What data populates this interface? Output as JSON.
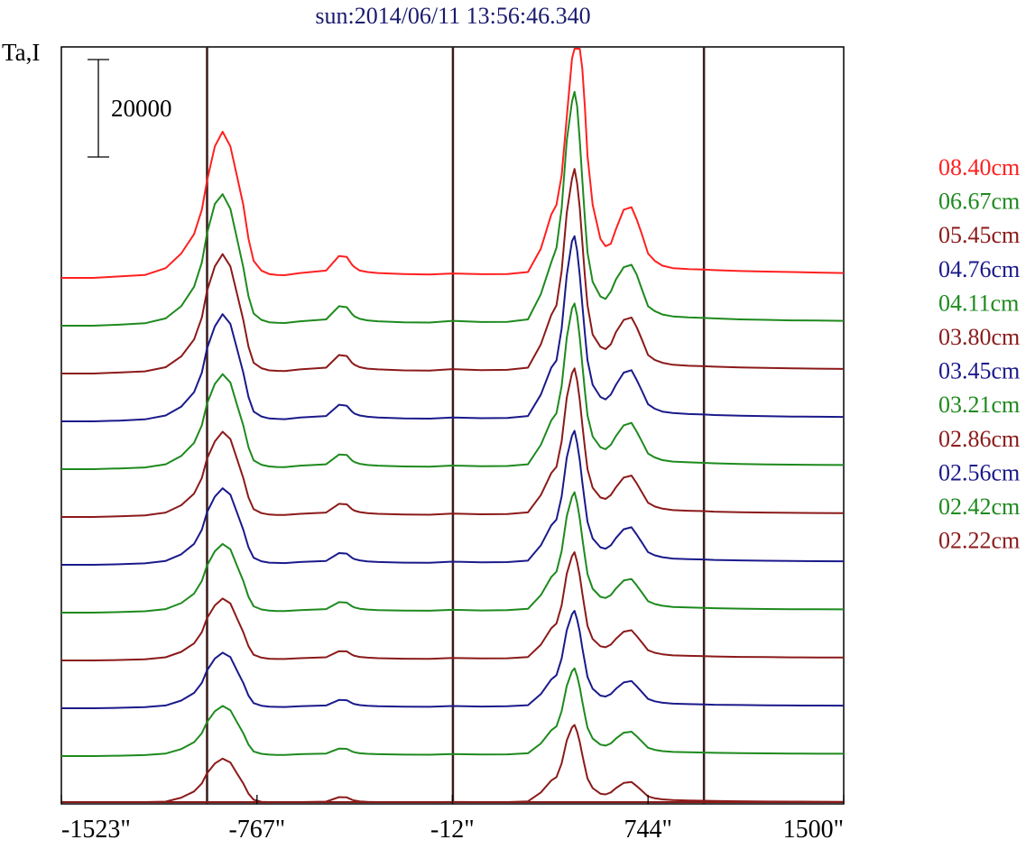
{
  "chart_data": {
    "type": "line",
    "title": "sun:2014/06/11 13:56:46.340",
    "ylabel": "Ta,I",
    "xlabel": "",
    "scale_bar": {
      "label": "20000",
      "value": 20000
    },
    "x_ticks": [
      {
        "value": -1523,
        "label": "-1523\""
      },
      {
        "value": -767,
        "label": "-767\""
      },
      {
        "value": -12,
        "label": "-12\""
      },
      {
        "value": 744,
        "label": "744\""
      },
      {
        "value": 1500,
        "label": "1500\""
      }
    ],
    "xlim": [
      -1523,
      1500
    ],
    "vertical_lines": [
      -960,
      -10,
      960
    ],
    "x": [
      -1523,
      -1400,
      -1300,
      -1200,
      -1120,
      -1060,
      -1010,
      -980,
      -960,
      -930,
      -900,
      -870,
      -845,
      -820,
      -800,
      -780,
      -750,
      -720,
      -690,
      -660,
      -600,
      -500,
      -450,
      -420,
      -400,
      -390,
      -370,
      -340,
      -300,
      -200,
      -100,
      -12,
      100,
      200,
      280,
      330,
      370,
      390,
      410,
      430,
      450,
      460,
      470,
      480,
      490,
      500,
      510,
      530,
      560,
      580,
      600,
      620,
      650,
      680,
      700,
      720,
      744,
      770,
      800,
      840,
      900,
      960,
      1000,
      1100,
      1200,
      1300,
      1400,
      1500
    ],
    "series": [
      {
        "name": "08.40cm",
        "color": "#ff2020",
        "values": [
          0,
          0,
          300,
          600,
          2000,
          5000,
          9000,
          14000,
          20000,
          27000,
          30000,
          27000,
          21000,
          15000,
          8000,
          3500,
          1500,
          800,
          600,
          550,
          1000,
          1500,
          4500,
          4300,
          2700,
          2200,
          1500,
          1200,
          1000,
          800,
          700,
          900,
          750,
          800,
          1200,
          6000,
          13000,
          15000,
          21000,
          33000,
          45000,
          50000,
          51000,
          49000,
          43000,
          35000,
          25000,
          15000,
          8000,
          6500,
          7000,
          10000,
          14000,
          14500,
          12000,
          9000,
          5000,
          3500,
          2500,
          2000,
          1800,
          1700,
          1600,
          1400,
          1300,
          1200,
          1100,
          1000
        ]
      },
      {
        "name": "06.67cm",
        "color": "#1e8a1e",
        "values": [
          0,
          0,
          200,
          500,
          1500,
          4000,
          8000,
          13000,
          19000,
          25000,
          27000,
          24000,
          18000,
          12000,
          6000,
          2500,
          1200,
          700,
          600,
          550,
          900,
          1300,
          4000,
          3800,
          2400,
          1900,
          1400,
          1100,
          900,
          700,
          650,
          1000,
          750,
          800,
          1300,
          6500,
          13000,
          16000,
          24000,
          38000,
          46000,
          48000,
          45000,
          38000,
          30000,
          22000,
          15000,
          9000,
          6000,
          5500,
          7000,
          9500,
          12000,
          12500,
          10500,
          7500,
          4000,
          3000,
          2300,
          1900,
          1700,
          1600,
          1500,
          1300,
          1200,
          1100,
          1050,
          1000
        ]
      },
      {
        "name": "05.45cm",
        "color": "#8b1a1a",
        "values": [
          0,
          0,
          200,
          450,
          1300,
          3500,
          7000,
          11500,
          17000,
          22000,
          24500,
          22000,
          16500,
          11000,
          5500,
          2200,
          1100,
          650,
          550,
          500,
          850,
          1200,
          3800,
          3600,
          2200,
          1800,
          1300,
          1000,
          850,
          650,
          600,
          900,
          700,
          750,
          1200,
          6000,
          12000,
          14000,
          21000,
          33000,
          40000,
          42000,
          39000,
          34000,
          27000,
          20000,
          14000,
          8000,
          5500,
          5000,
          6000,
          8500,
          11000,
          11500,
          9500,
          7000,
          3800,
          2800,
          2200,
          1800,
          1600,
          1500,
          1400,
          1250,
          1150,
          1050,
          1000,
          950
        ]
      },
      {
        "name": "04.76cm",
        "color": "#1a1a8b",
        "values": [
          0,
          0,
          150,
          400,
          1200,
          3000,
          6000,
          10000,
          15000,
          19500,
          22000,
          20000,
          15000,
          10000,
          5000,
          2000,
          1000,
          600,
          500,
          450,
          800,
          1100,
          3400,
          3200,
          2000,
          1600,
          1200,
          950,
          800,
          600,
          550,
          800,
          650,
          700,
          1100,
          5500,
          11000,
          12500,
          19000,
          30000,
          37000,
          38000,
          35000,
          30000,
          24000,
          18000,
          12500,
          7500,
          5000,
          4500,
          5500,
          7500,
          10000,
          10500,
          8500,
          6300,
          3500,
          2600,
          2000,
          1700,
          1500,
          1400,
          1300,
          1150,
          1050,
          980,
          940,
          900
        ]
      },
      {
        "name": "04.11cm",
        "color": "#1e8a1e",
        "values": [
          0,
          0,
          150,
          350,
          1000,
          2700,
          5400,
          9000,
          13500,
          17500,
          19500,
          17800,
          13300,
          9000,
          4500,
          1800,
          900,
          550,
          450,
          420,
          720,
          1000,
          3000,
          2900,
          1800,
          1450,
          1100,
          850,
          720,
          550,
          500,
          750,
          600,
          650,
          1000,
          5000,
          10000,
          11500,
          17000,
          27000,
          33000,
          34000,
          31500,
          27000,
          21500,
          16000,
          11000,
          6700,
          4500,
          4100,
          5000,
          6800,
          9000,
          9500,
          7700,
          5700,
          3200,
          2400,
          1850,
          1550,
          1400,
          1300,
          1200,
          1050,
          980,
          920,
          880,
          850
        ]
      },
      {
        "name": "03.80cm",
        "color": "#8b1a1a",
        "values": [
          0,
          0,
          130,
          320,
          900,
          2400,
          4800,
          8000,
          12000,
          15500,
          17500,
          16000,
          12000,
          8000,
          4000,
          1600,
          800,
          500,
          420,
          400,
          650,
          900,
          2700,
          2600,
          1600,
          1300,
          1000,
          780,
          650,
          500,
          460,
          700,
          550,
          600,
          950,
          4500,
          9000,
          10300,
          15500,
          24500,
          29500,
          30500,
          28000,
          24000,
          19000,
          14200,
          9800,
          6000,
          4000,
          3700,
          4500,
          6100,
          8100,
          8500,
          6900,
          5100,
          2900,
          2150,
          1700,
          1400,
          1280,
          1200,
          1100,
          980,
          900,
          850,
          820,
          800
        ]
      },
      {
        "name": "03.45cm",
        "color": "#1a1a8b",
        "values": [
          0,
          0,
          120,
          300,
          800,
          2150,
          4300,
          7200,
          10800,
          14000,
          15700,
          14400,
          10800,
          7200,
          3600,
          1450,
          720,
          450,
          380,
          360,
          580,
          800,
          2400,
          2300,
          1450,
          1170,
          900,
          700,
          580,
          450,
          420,
          650,
          500,
          550,
          850,
          4000,
          8100,
          9300,
          14000,
          22000,
          26500,
          27500,
          25000,
          21500,
          17000,
          12800,
          8800,
          5400,
          3600,
          3300,
          4000,
          5500,
          7300,
          7700,
          6200,
          4600,
          2600,
          1950,
          1550,
          1280,
          1160,
          1100,
          1000,
          900,
          830,
          780,
          750,
          730
        ]
      },
      {
        "name": "03.21cm",
        "color": "#1e8a1e",
        "values": [
          0,
          0,
          110,
          270,
          720,
          1950,
          3900,
          6500,
          9700,
          12600,
          14100,
          13000,
          9700,
          6500,
          3250,
          1300,
          650,
          400,
          340,
          320,
          520,
          720,
          2150,
          2050,
          1300,
          1050,
          800,
          630,
          520,
          400,
          380,
          580,
          450,
          500,
          770,
          3600,
          7300,
          8400,
          12600,
          19800,
          23800,
          24700,
          22500,
          19300,
          15300,
          11500,
          7900,
          4900,
          3250,
          3000,
          3600,
          4950,
          6600,
          6900,
          5600,
          4150,
          2350,
          1750,
          1400,
          1150,
          1050,
          990,
          900,
          810,
          750,
          700,
          680,
          660
        ]
      },
      {
        "name": "02.86cm",
        "color": "#8b1a1a",
        "values": [
          0,
          0,
          100,
          240,
          650,
          1750,
          3500,
          5800,
          8700,
          11300,
          12700,
          11700,
          8700,
          5800,
          2900,
          1170,
          580,
          360,
          300,
          290,
          470,
          650,
          1900,
          1850,
          1170,
          950,
          720,
          570,
          470,
          360,
          340,
          520,
          400,
          450,
          700,
          3250,
          6600,
          7600,
          11300,
          17800,
          21400,
          22200,
          20200,
          17400,
          13800,
          10400,
          7100,
          4400,
          2900,
          2700,
          3250,
          4450,
          5900,
          6200,
          5000,
          3700,
          2100,
          1580,
          1260,
          1040,
          950,
          890,
          810,
          730,
          680,
          630,
          610,
          590
        ]
      },
      {
        "name": "02.56cm",
        "color": "#1a1a8b",
        "values": [
          0,
          0,
          90,
          220,
          580,
          1580,
          3150,
          5200,
          7800,
          10200,
          11400,
          10500,
          7800,
          5200,
          2600,
          1050,
          520,
          320,
          270,
          260,
          420,
          580,
          1700,
          1650,
          1050,
          850,
          650,
          510,
          420,
          320,
          300,
          470,
          360,
          400,
          630,
          2900,
          5900,
          6800,
          10200,
          16000,
          19300,
          20000,
          18200,
          15700,
          12400,
          9400,
          6400,
          4000,
          2600,
          2400,
          2900,
          4000,
          5300,
          5600,
          4500,
          3350,
          1900,
          1420,
          1130,
          940,
          850,
          800,
          730,
          660,
          610,
          570,
          550,
          530
        ]
      },
      {
        "name": "02.42cm",
        "color": "#1e8a1e",
        "values": [
          0,
          0,
          80,
          200,
          520,
          1420,
          2850,
          4700,
          7000,
          9200,
          10300,
          9400,
          7000,
          4700,
          2350,
          950,
          470,
          290,
          240,
          230,
          380,
          520,
          1530,
          1480,
          950,
          770,
          580,
          460,
          380,
          290,
          270,
          420,
          320,
          360,
          570,
          2600,
          5300,
          6100,
          9200,
          14400,
          17400,
          18000,
          16400,
          14100,
          11200,
          8400,
          5800,
          3600,
          2350,
          2150,
          2600,
          3600,
          4800,
          5000,
          4050,
          3000,
          1700,
          1280,
          1020,
          850,
          770,
          720,
          660,
          590,
          550,
          510,
          490,
          480
        ]
      },
      {
        "name": "02.22cm",
        "color": "#8b1a1a",
        "values": [
          0,
          0,
          70,
          180,
          470,
          1280,
          2550,
          4200,
          6300,
          8300,
          9300,
          8500,
          6300,
          4200,
          2100,
          860,
          420,
          260,
          220,
          210,
          340,
          470,
          1380,
          1330,
          860,
          690,
          520,
          410,
          340,
          260,
          240,
          380,
          290,
          320,
          510,
          2350,
          4800,
          5500,
          8300,
          13000,
          15700,
          16200,
          14800,
          12700,
          10100,
          7600,
          5200,
          3250,
          2100,
          1950,
          2350,
          3250,
          4300,
          4500,
          3650,
          2700,
          1530,
          1150,
          920,
          770,
          690,
          650,
          590,
          530,
          490,
          460,
          440,
          430
        ]
      }
    ],
    "extra_traces": [
      {
        "color": "#1a1a8b",
        "scale": 0.42
      },
      {
        "color": "#8b1a1a",
        "scale": 0.36
      },
      {
        "color": "#1a1a8b",
        "scale": 0.3
      },
      {
        "color": "#1e8a1e",
        "scale": 0.26
      },
      {
        "color": "#8b1a1a",
        "scale": 0.22
      }
    ]
  }
}
